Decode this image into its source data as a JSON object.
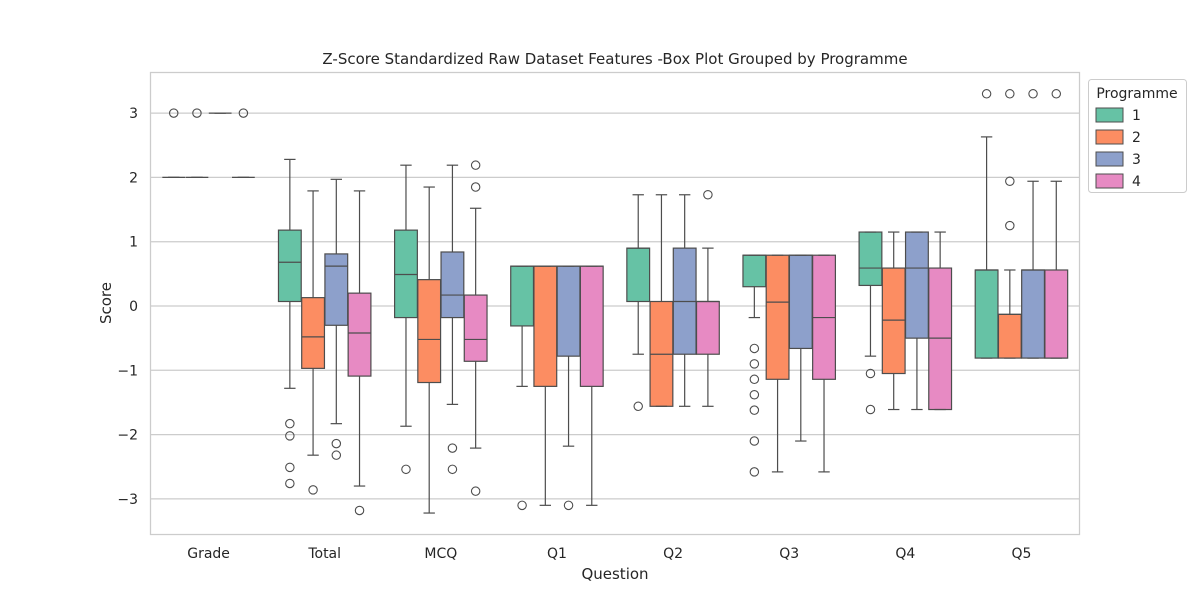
{
  "chart_data": {
    "type": "box",
    "title": "Z-Score Standardized Raw Dataset Features -Box Plot Grouped by Programme",
    "xlabel": "Question",
    "ylabel": "Score",
    "ylim": [
      -3.55,
      3.65
    ],
    "yticks": [
      3,
      2,
      1,
      0,
      -1,
      -2,
      -3
    ],
    "ytick_labels": [
      "3",
      "2",
      "1",
      "0",
      "−1",
      "−2",
      "−3"
    ],
    "grid": true,
    "legend": {
      "title": "Programme",
      "placement": "top-right outside",
      "entries": [
        "1",
        "2",
        "3",
        "4"
      ]
    },
    "colors": {
      "1": "#66c2a5",
      "2": "#fc8d62",
      "3": "#8da0cb",
      "4": "#e78ac3"
    },
    "categories": [
      "Grade",
      "Total",
      "MCQ",
      "Q1",
      "Q2",
      "Q3",
      "Q4",
      "Q5"
    ],
    "series": [
      {
        "name": "1",
        "boxes": [
          {
            "q1": 2,
            "median": 2,
            "q3": 2,
            "whislo": 2,
            "whishi": 2,
            "fliers": [
              3
            ]
          },
          {
            "q1": 0.07,
            "median": 0.68,
            "q3": 1.18,
            "whislo": -1.28,
            "whishi": 2.28,
            "fliers": [
              -1.83,
              -2.02,
              -2.51,
              -2.76
            ]
          },
          {
            "q1": -0.18,
            "median": 0.49,
            "q3": 1.18,
            "whislo": -1.87,
            "whishi": 2.19,
            "fliers": [
              -2.54
            ]
          },
          {
            "q1": -0.31,
            "median": 0.62,
            "q3": 0.62,
            "whislo": -1.25,
            "whishi": 0.62,
            "fliers": [
              -3.1
            ]
          },
          {
            "q1": 0.07,
            "median": 0.9,
            "q3": 0.9,
            "whislo": -0.75,
            "whishi": 1.73,
            "fliers": [
              -1.56
            ]
          },
          {
            "q1": 0.3,
            "median": 0.79,
            "q3": 0.79,
            "whislo": -0.18,
            "whishi": 0.79,
            "fliers": [
              -0.66,
              -0.9,
              -1.14,
              -1.38,
              -1.62,
              -2.1,
              -2.58
            ]
          },
          {
            "q1": 0.32,
            "median": 0.59,
            "q3": 1.15,
            "whislo": -0.78,
            "whishi": 1.15,
            "fliers": [
              -1.05,
              -1.61
            ]
          },
          {
            "q1": -0.81,
            "median": 0.56,
            "q3": 0.56,
            "whislo": -0.81,
            "whishi": 2.63,
            "fliers": [
              3.3
            ]
          }
        ]
      },
      {
        "name": "2",
        "boxes": [
          {
            "q1": 2,
            "median": 2,
            "q3": 2,
            "whislo": 2,
            "whishi": 2,
            "fliers": [
              3
            ]
          },
          {
            "q1": -0.97,
            "median": -0.48,
            "q3": 0.13,
            "whislo": -2.32,
            "whishi": 1.79,
            "fliers": [
              -2.86
            ]
          },
          {
            "q1": -1.19,
            "median": -0.52,
            "q3": 0.41,
            "whislo": -3.22,
            "whishi": 1.85,
            "fliers": []
          },
          {
            "q1": -1.25,
            "median": 0.62,
            "q3": 0.62,
            "whislo": -3.1,
            "whishi": 0.62,
            "fliers": []
          },
          {
            "q1": -1.56,
            "median": -0.75,
            "q3": 0.07,
            "whislo": -1.56,
            "whishi": 1.73,
            "fliers": []
          },
          {
            "q1": -1.14,
            "median": 0.06,
            "q3": 0.79,
            "whislo": -2.58,
            "whishi": 0.79,
            "fliers": []
          },
          {
            "q1": -1.05,
            "median": -0.22,
            "q3": 0.59,
            "whislo": -1.61,
            "whishi": 1.15,
            "fliers": []
          },
          {
            "q1": -0.81,
            "median": -0.13,
            "q3": -0.13,
            "whislo": -0.81,
            "whishi": 0.56,
            "fliers": [
              3.3,
              1.94,
              1.25
            ]
          }
        ]
      },
      {
        "name": "3",
        "boxes": [
          {
            "q1": 3,
            "median": 3,
            "q3": 3,
            "whislo": 3,
            "whishi": 3,
            "fliers": []
          },
          {
            "q1": -0.3,
            "median": 0.62,
            "q3": 0.81,
            "whislo": -1.83,
            "whishi": 1.97,
            "fliers": [
              -2.14,
              -2.32
            ]
          },
          {
            "q1": -0.18,
            "median": 0.17,
            "q3": 0.84,
            "whislo": -1.53,
            "whishi": 2.19,
            "fliers": [
              -2.21,
              -2.54
            ]
          },
          {
            "q1": -0.78,
            "median": 0.62,
            "q3": 0.62,
            "whislo": -2.18,
            "whishi": 0.62,
            "fliers": [
              -3.1
            ]
          },
          {
            "q1": -0.75,
            "median": 0.07,
            "q3": 0.9,
            "whislo": -1.56,
            "whishi": 1.73,
            "fliers": []
          },
          {
            "q1": -0.66,
            "median": 0.79,
            "q3": 0.79,
            "whislo": -2.1,
            "whishi": 0.79,
            "fliers": []
          },
          {
            "q1": -0.5,
            "median": 0.59,
            "q3": 1.15,
            "whislo": -1.61,
            "whishi": 1.15,
            "fliers": []
          },
          {
            "q1": -0.81,
            "median": 0.56,
            "q3": 0.56,
            "whislo": -0.81,
            "whishi": 1.94,
            "fliers": [
              3.3
            ]
          }
        ]
      },
      {
        "name": "4",
        "boxes": [
          {
            "q1": 2,
            "median": 2,
            "q3": 2,
            "whislo": 2,
            "whishi": 2,
            "fliers": [
              3
            ]
          },
          {
            "q1": -1.09,
            "median": -0.42,
            "q3": 0.2,
            "whislo": -2.8,
            "whishi": 1.79,
            "fliers": [
              -3.18
            ]
          },
          {
            "q1": -0.86,
            "median": -0.52,
            "q3": 0.17,
            "whislo": -2.21,
            "whishi": 1.52,
            "fliers": [
              2.19,
              1.85,
              -2.88
            ]
          },
          {
            "q1": -1.25,
            "median": 0.62,
            "q3": 0.62,
            "whislo": -3.1,
            "whishi": 0.62,
            "fliers": []
          },
          {
            "q1": -0.75,
            "median": 0.07,
            "q3": 0.07,
            "whislo": -1.56,
            "whishi": 0.9,
            "fliers": [
              1.73
            ]
          },
          {
            "q1": -1.14,
            "median": -0.18,
            "q3": 0.79,
            "whislo": -2.58,
            "whishi": 0.79,
            "fliers": []
          },
          {
            "q1": -1.61,
            "median": -0.5,
            "q3": 0.59,
            "whislo": -1.61,
            "whishi": 1.15,
            "fliers": []
          },
          {
            "q1": -0.81,
            "median": -0.81,
            "q3": 0.56,
            "whislo": -0.81,
            "whishi": 1.94,
            "fliers": [
              3.3
            ]
          }
        ]
      }
    ]
  }
}
